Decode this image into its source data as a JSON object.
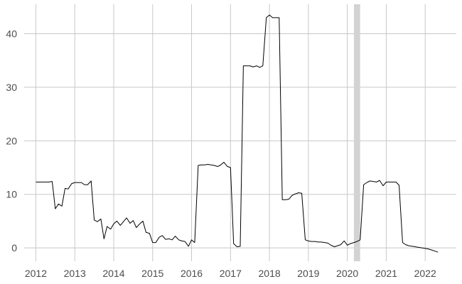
{
  "chart_data": {
    "type": "line",
    "title": "",
    "xlabel": "",
    "ylabel": "",
    "xlim": [
      2011.7,
      2022.8
    ],
    "ylim": [
      -2.5,
      45.5
    ],
    "x_ticks": [
      2012,
      2013,
      2014,
      2015,
      2016,
      2017,
      2018,
      2019,
      2020,
      2021,
      2022
    ],
    "x_tick_labels": [
      "2012",
      "2013",
      "2014",
      "2015",
      "2016",
      "2017",
      "2018",
      "2019",
      "2020",
      "2021",
      "2022"
    ],
    "y_ticks": [
      0,
      10,
      20,
      30,
      40
    ],
    "y_tick_labels": [
      "0",
      "10",
      "20",
      "30",
      "40"
    ],
    "grid": true,
    "line_color": "#000000",
    "shaded_region": {
      "x": [
        2020.17,
        2020.33
      ],
      "color": "#d3d3d3"
    },
    "series": [
      {
        "x": [
          2012.0,
          2012.08,
          2012.17,
          2012.25,
          2012.33,
          2012.42,
          2012.5,
          2012.58,
          2012.67,
          2012.75,
          2012.83,
          2012.92,
          2013.0,
          2013.08,
          2013.17,
          2013.25,
          2013.33,
          2013.42,
          2013.5,
          2013.58,
          2013.67,
          2013.75,
          2013.83,
          2013.92,
          2014.0,
          2014.08,
          2014.17,
          2014.25,
          2014.33,
          2014.42,
          2014.5,
          2014.58,
          2014.67,
          2014.75,
          2014.83,
          2014.92,
          2015.0,
          2015.08,
          2015.17,
          2015.25,
          2015.33,
          2015.42,
          2015.5,
          2015.58,
          2015.67,
          2015.75,
          2015.83,
          2015.92,
          2016.0,
          2016.08,
          2016.17,
          2016.25,
          2016.33,
          2016.42,
          2016.5,
          2016.58,
          2016.67,
          2016.75,
          2016.83,
          2016.92,
          2017.0,
          2017.08,
          2017.17,
          2017.25,
          2017.33,
          2017.42,
          2017.5,
          2017.58,
          2017.67,
          2017.75,
          2017.83,
          2017.92,
          2018.0,
          2018.08,
          2018.17,
          2018.25,
          2018.33,
          2018.42,
          2018.5,
          2018.58,
          2018.67,
          2018.75,
          2018.83,
          2018.92,
          2019.0,
          2019.08,
          2019.17,
          2019.25,
          2019.33,
          2019.42,
          2019.5,
          2019.58,
          2019.67,
          2019.75,
          2019.83,
          2019.92,
          2020.0,
          2020.08,
          2020.17,
          2020.25,
          2020.33,
          2020.42,
          2020.5,
          2020.58,
          2020.67,
          2020.75,
          2020.83,
          2020.92,
          2021.0,
          2021.08,
          2021.17,
          2021.25,
          2021.33,
          2021.42,
          2021.5,
          2021.58,
          2021.67,
          2021.75,
          2021.83,
          2021.92,
          2022.0,
          2022.08,
          2022.17,
          2022.25,
          2022.33
        ],
        "y": [
          12.3,
          12.3,
          12.3,
          12.3,
          12.3,
          12.4,
          7.3,
          8.2,
          7.8,
          11.1,
          11.0,
          12.0,
          12.2,
          12.2,
          12.2,
          11.8,
          11.8,
          12.5,
          5.2,
          4.9,
          5.4,
          1.7,
          4.0,
          3.5,
          4.5,
          5.0,
          4.2,
          4.9,
          5.6,
          4.6,
          5.1,
          3.8,
          4.5,
          5.0,
          2.9,
          2.7,
          1.0,
          1.0,
          2.0,
          2.3,
          1.6,
          1.7,
          1.5,
          2.2,
          1.5,
          1.3,
          1.2,
          0.3,
          1.5,
          1.0,
          15.4,
          15.5,
          15.5,
          15.6,
          15.5,
          15.4,
          15.2,
          15.5,
          16.0,
          15.2,
          15.0,
          0.8,
          0.2,
          0.3,
          34.0,
          34.0,
          34.0,
          33.8,
          34.0,
          33.7,
          34.0,
          43.0,
          43.5,
          43.0,
          43.0,
          43.0,
          9.0,
          9.0,
          9.1,
          9.8,
          10.1,
          10.3,
          10.2,
          1.5,
          1.3,
          1.2,
          1.2,
          1.1,
          1.1,
          1.0,
          0.9,
          0.5,
          0.2,
          0.4,
          0.6,
          1.3,
          0.5,
          0.8,
          1.0,
          1.2,
          1.5,
          11.8,
          12.2,
          12.5,
          12.4,
          12.3,
          12.6,
          11.6,
          12.3,
          12.3,
          12.3,
          12.3,
          11.7,
          1.0,
          0.6,
          0.4,
          0.3,
          0.2,
          0.1,
          0.0,
          -0.1,
          -0.2,
          -0.4,
          -0.6,
          -0.8
        ]
      }
    ]
  }
}
